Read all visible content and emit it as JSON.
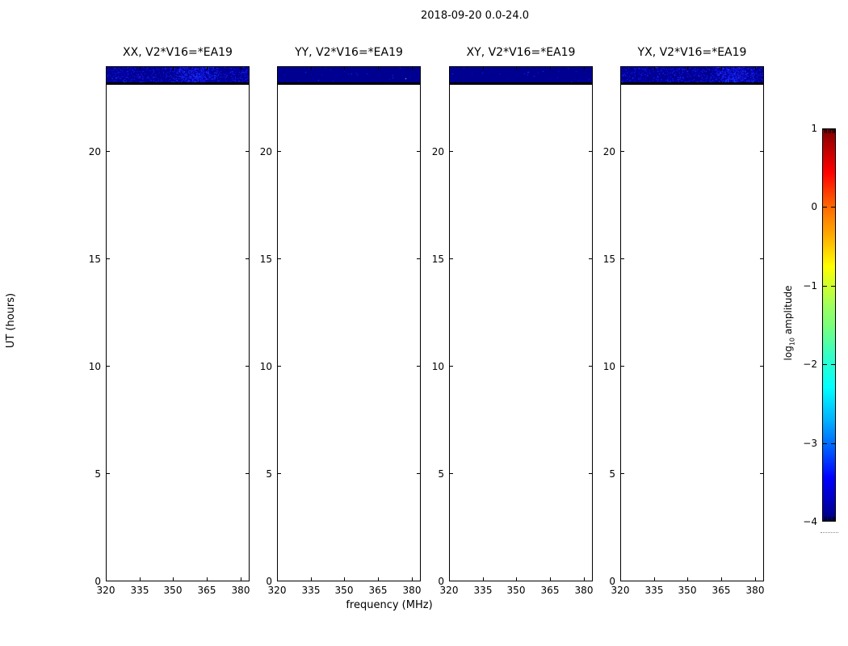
{
  "figure": {
    "title": "2018-09-20 0.0-24.0",
    "xlabel": "frequency (MHz)",
    "ylabel": "UT (hours)",
    "colorbar_label_pre": "log",
    "colorbar_label_sub": "10",
    "colorbar_label_post": " amplitude"
  },
  "chart_data": {
    "type": "heatmap",
    "description": "Four dynamic-spectrum (frequency vs UT time) panels, one per polarization product, sharing a jet colormap colorbar. Data exists only in a narrow band near the top of each panel (UT ~23.2-24.0); amplitudes there are near the colormap minimum (dark navy, log10 amplitude ~ -4) with brighter blue speckle noise, plus a black flagged row just below the band. The rest of each panel is empty (white).",
    "panels": [
      {
        "title": "XX, V2*V16=*EA19",
        "polarization": "XX",
        "band_texture": "speckled-dense",
        "white_pixel": false
      },
      {
        "title": "YY, V2*V16=*EA19",
        "polarization": "YY",
        "band_texture": "mostly-uniform",
        "white_pixel": true
      },
      {
        "title": "XY, V2*V16=*EA19",
        "polarization": "XY",
        "band_texture": "mostly-uniform",
        "white_pixel": false
      },
      {
        "title": "YX, V2*V16=*EA19",
        "polarization": "YX",
        "band_texture": "speckled-dense",
        "white_pixel": false
      }
    ],
    "x_axis": {
      "label": "frequency (MHz)",
      "range_mhz": [
        320,
        384
      ],
      "ticks": [
        320,
        335,
        350,
        365,
        380
      ]
    },
    "y_axis": {
      "label": "UT (hours)",
      "range_hours": [
        0,
        24
      ],
      "ticks": [
        0,
        5,
        10,
        15,
        20
      ]
    },
    "data_band": {
      "ut_range": [
        23.3,
        24.0
      ],
      "approx_level_log10": -3.9,
      "flagged_black_row_ut": 23.2
    },
    "colorbar": {
      "label": "log10 amplitude",
      "colormap": "jet",
      "range": [
        -4,
        1
      ],
      "ticks": [
        1,
        0,
        -1,
        -2,
        -3,
        -4
      ],
      "tick_labels": [
        "1",
        "0",
        "−1",
        "−2",
        "−3",
        "−4"
      ],
      "top_color": "#7f0000",
      "bottom_color": "#00007f"
    },
    "band_base_color": "#000090",
    "band_speckle_colors": [
      "#0000c0",
      "#1414e6",
      "#2828ff",
      "#0050ff"
    ]
  }
}
